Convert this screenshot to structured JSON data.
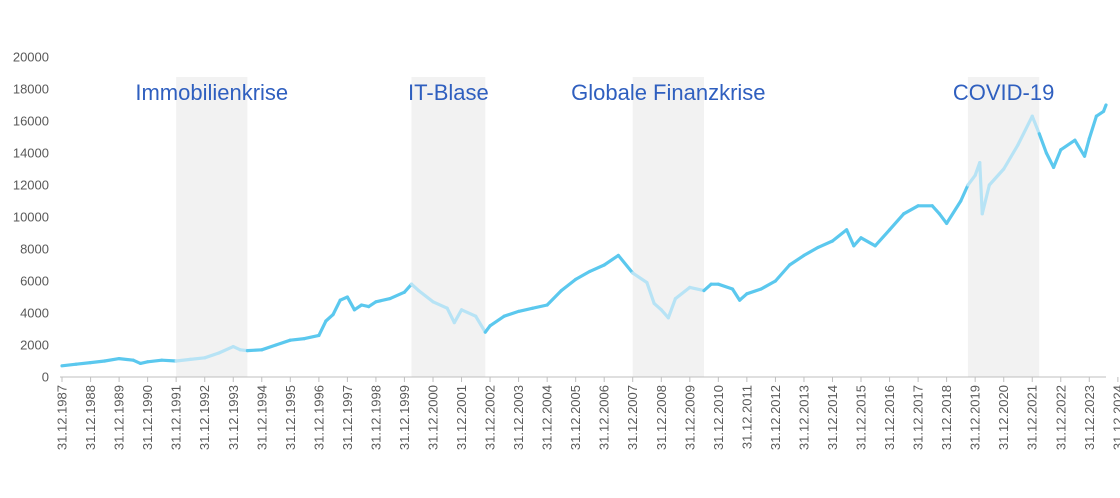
{
  "chart_data": {
    "type": "line",
    "title": "",
    "xlabel": "",
    "ylabel": "",
    "ylim": [
      0,
      20000
    ],
    "yticks": [
      0,
      2000,
      4000,
      6000,
      8000,
      10000,
      12000,
      14000,
      16000,
      18000,
      20000
    ],
    "xlim": [
      "1987-12-31",
      "2024-08-01"
    ],
    "xtick_labels": [
      "31.12.1987",
      "31.12.1988",
      "31.12.1989",
      "31.12.1990",
      "31.12.1991",
      "31.12.1992",
      "31.12.1993",
      "31.12.1994",
      "31.12.1995",
      "31.12.1996",
      "31.12.1997",
      "31.12.1998",
      "31.12.1999",
      "31.12.2000",
      "31.12.2001",
      "31.12.2002",
      "31.12.2003",
      "31.12.2004",
      "31.12.2005",
      "31.12.2006",
      "31.12.2007",
      "31.12.2008",
      "31.12.2009",
      "31.12.2010",
      "31.12.2011",
      "31.12.2012",
      "31.12.2013",
      "31.12.2014",
      "31.12.2015",
      "31.12.2016",
      "31.12.2017",
      "31.12.2018",
      "31.12.2019",
      "31.12.2020",
      "31.12.2021",
      "31.12.2022",
      "31.12.2023",
      "31.12.2024"
    ],
    "grid": false,
    "legend": "none",
    "colors": {
      "line": "#5bc8ee",
      "crisis_line": "#b7e3f5",
      "crisis_band": "#f2f2f2",
      "annotation": "#2f5fbf",
      "axis": "#bfbfbf",
      "tick_text": "#595959"
    },
    "crises": [
      {
        "label": "Immobilienkrise",
        "start": "1991-12-31",
        "end": "1994-06-30"
      },
      {
        "label": "IT-Blase",
        "start": "2000-03-31",
        "end": "2002-10-31"
      },
      {
        "label": "Globale Finanzkrise",
        "start": "2007-12-31",
        "end": "2010-06-30"
      },
      {
        "label": "COVID-19",
        "start": "2019-09-30",
        "end": "2022-03-31"
      }
    ],
    "x": [
      "1987-12-31",
      "1988-06-30",
      "1988-12-31",
      "1989-06-30",
      "1989-12-31",
      "1990-06-30",
      "1990-09-30",
      "1990-12-31",
      "1991-06-30",
      "1991-12-31",
      "1992-06-30",
      "1992-12-31",
      "1993-06-30",
      "1993-12-31",
      "1994-03-31",
      "1994-06-30",
      "1994-12-31",
      "1995-06-30",
      "1995-12-31",
      "1996-06-30",
      "1996-12-31",
      "1997-03-31",
      "1997-06-30",
      "1997-09-30",
      "1997-12-31",
      "1998-03-31",
      "1998-06-30",
      "1998-09-30",
      "1998-12-31",
      "1999-06-30",
      "1999-12-31",
      "2000-03-31",
      "2000-06-30",
      "2000-12-31",
      "2001-06-30",
      "2001-09-30",
      "2001-12-31",
      "2002-06-30",
      "2002-10-31",
      "2002-12-31",
      "2003-06-30",
      "2003-12-31",
      "2004-06-30",
      "2004-12-31",
      "2005-06-30",
      "2005-12-31",
      "2006-06-30",
      "2006-12-31",
      "2007-06-30",
      "2007-12-31",
      "2008-06-30",
      "2008-09-30",
      "2008-12-31",
      "2009-03-31",
      "2009-06-30",
      "2009-12-31",
      "2010-06-30",
      "2010-09-30",
      "2010-12-31",
      "2011-06-30",
      "2011-09-30",
      "2011-12-31",
      "2012-06-30",
      "2012-12-31",
      "2013-06-30",
      "2013-12-31",
      "2014-06-30",
      "2014-12-31",
      "2015-06-30",
      "2015-09-30",
      "2015-12-31",
      "2016-06-30",
      "2016-12-31",
      "2017-06-30",
      "2017-12-31",
      "2018-06-30",
      "2018-09-30",
      "2018-12-31",
      "2019-06-30",
      "2019-09-30",
      "2019-12-31",
      "2020-02-28",
      "2020-03-31",
      "2020-06-30",
      "2020-12-31",
      "2021-06-30",
      "2021-12-31",
      "2022-03-31",
      "2022-06-30",
      "2022-09-30",
      "2022-12-31",
      "2023-06-30",
      "2023-10-31",
      "2023-12-31",
      "2024-03-31",
      "2024-06-30",
      "2024-08-01"
    ],
    "values": [
      700,
      800,
      900,
      1000,
      1150,
      1050,
      850,
      950,
      1050,
      1000,
      1100,
      1200,
      1500,
      1900,
      1700,
      1650,
      1700,
      2000,
      2300,
      2400,
      2600,
      3500,
      3900,
      4800,
      5000,
      4200,
      4500,
      4400,
      4700,
      4900,
      5300,
      5800,
      5400,
      4700,
      4300,
      3400,
      4200,
      3800,
      2800,
      3200,
      3800,
      4100,
      4300,
      4500,
      5400,
      6100,
      6600,
      7000,
      7600,
      6500,
      5900,
      4600,
      4200,
      3700,
      4900,
      5600,
      5400,
      5800,
      5800,
      5500,
      4800,
      5200,
      5500,
      6000,
      7000,
      7600,
      8100,
      8500,
      9200,
      8200,
      8700,
      8200,
      9200,
      10200,
      10700,
      10700,
      10200,
      9600,
      11000,
      12000,
      12600,
      13400,
      10200,
      12000,
      13000,
      14500,
      16300,
      15200,
      14000,
      13100,
      14200,
      14800,
      13800,
      14900,
      16300,
      16600,
      17000
    ]
  }
}
